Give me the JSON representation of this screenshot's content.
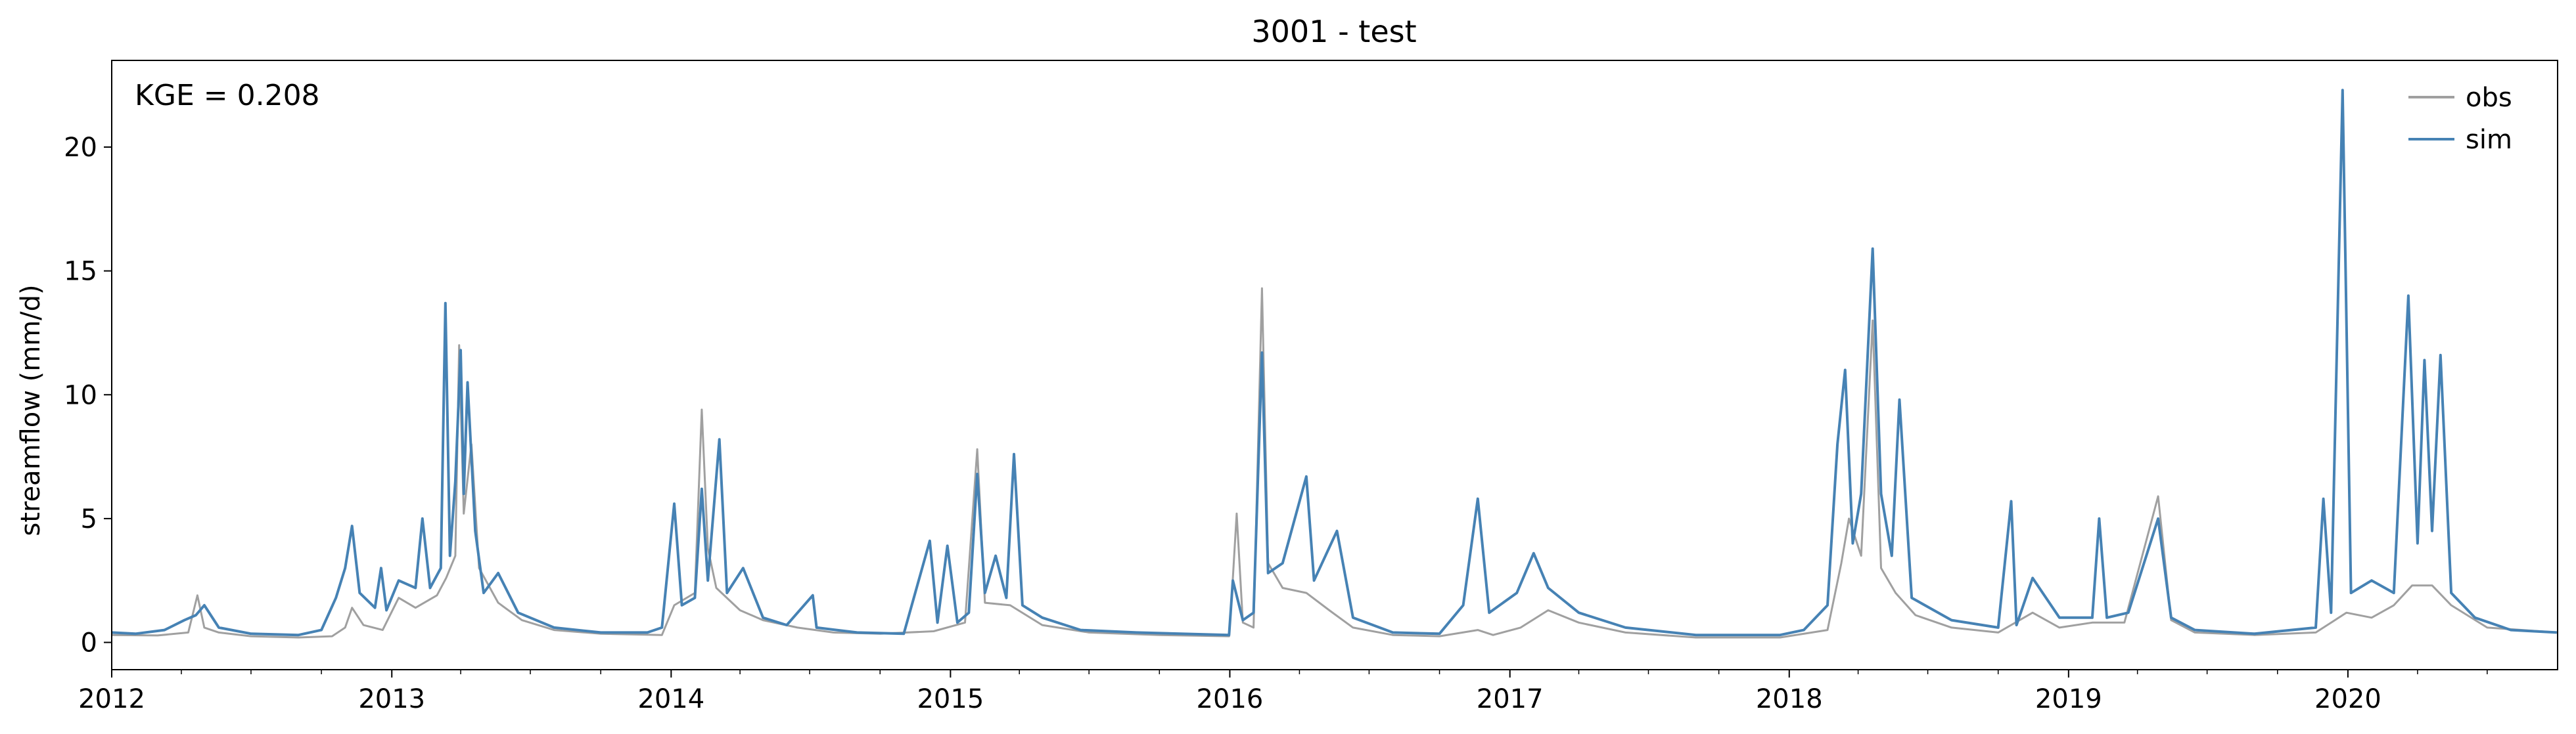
{
  "chart_data": {
    "type": "line",
    "title": "3001 - test",
    "xlabel": "",
    "ylabel": "streamflow (mm/d)",
    "annotation": "KGE = 0.208",
    "x_range": [
      "2012-01-01",
      "2020-10-01"
    ],
    "ylim": [
      -1.1,
      23.5
    ],
    "x_ticks": [
      "2012",
      "2013",
      "2014",
      "2015",
      "2016",
      "2017",
      "2018",
      "2019",
      "2020"
    ],
    "y_ticks": [
      "0",
      "5",
      "10",
      "15",
      "20"
    ],
    "grid": false,
    "legend_position": "top-right",
    "series": [
      {
        "name": "obs",
        "color": "#a0a0a0",
        "points": [
          [
            "2012-01-01",
            0.3
          ],
          [
            "2012-03-01",
            0.28
          ],
          [
            "2012-04-10",
            0.4
          ],
          [
            "2012-04-22",
            1.9
          ],
          [
            "2012-05-01",
            0.6
          ],
          [
            "2012-05-20",
            0.4
          ],
          [
            "2012-07-01",
            0.25
          ],
          [
            "2012-09-01",
            0.2
          ],
          [
            "2012-10-15",
            0.25
          ],
          [
            "2012-11-01",
            0.6
          ],
          [
            "2012-11-10",
            1.4
          ],
          [
            "2012-11-25",
            0.7
          ],
          [
            "2012-12-20",
            0.5
          ],
          [
            "2013-01-10",
            1.8
          ],
          [
            "2013-02-01",
            1.4
          ],
          [
            "2013-03-01",
            1.9
          ],
          [
            "2013-03-13",
            2.6
          ],
          [
            "2013-03-25",
            3.5
          ],
          [
            "2013-03-30",
            12.0
          ],
          [
            "2013-04-05",
            5.2
          ],
          [
            "2013-04-15",
            8.0
          ],
          [
            "2013-04-25",
            3.0
          ],
          [
            "2013-05-20",
            1.6
          ],
          [
            "2013-06-20",
            0.9
          ],
          [
            "2013-08-01",
            0.5
          ],
          [
            "2013-10-01",
            0.35
          ],
          [
            "2013-12-20",
            0.3
          ],
          [
            "2014-01-05",
            1.5
          ],
          [
            "2014-02-01",
            2.0
          ],
          [
            "2014-02-10",
            9.4
          ],
          [
            "2014-02-18",
            3.8
          ],
          [
            "2014-03-01",
            2.2
          ],
          [
            "2014-04-01",
            1.3
          ],
          [
            "2014-05-01",
            0.9
          ],
          [
            "2014-06-15",
            0.6
          ],
          [
            "2014-08-01",
            0.4
          ],
          [
            "2014-10-01",
            0.35
          ],
          [
            "2014-12-10",
            0.45
          ],
          [
            "2015-01-20",
            0.8
          ],
          [
            "2015-02-05",
            7.8
          ],
          [
            "2015-02-15",
            1.6
          ],
          [
            "2015-03-20",
            1.5
          ],
          [
            "2015-05-01",
            0.7
          ],
          [
            "2015-07-01",
            0.4
          ],
          [
            "2015-10-01",
            0.3
          ],
          [
            "2015-12-31",
            0.25
          ],
          [
            "2016-01-05",
            2.6
          ],
          [
            "2016-01-10",
            5.2
          ],
          [
            "2016-01-18",
            0.8
          ],
          [
            "2016-02-01",
            0.6
          ],
          [
            "2016-02-12",
            14.3
          ],
          [
            "2016-02-20",
            3.2
          ],
          [
            "2016-03-10",
            2.2
          ],
          [
            "2016-04-10",
            2.0
          ],
          [
            "2016-05-10",
            1.3
          ],
          [
            "2016-06-10",
            0.6
          ],
          [
            "2016-08-01",
            0.3
          ],
          [
            "2016-10-01",
            0.25
          ],
          [
            "2016-11-20",
            0.5
          ],
          [
            "2016-12-10",
            0.3
          ],
          [
            "2017-01-15",
            0.6
          ],
          [
            "2017-02-20",
            1.3
          ],
          [
            "2017-04-01",
            0.8
          ],
          [
            "2017-06-01",
            0.4
          ],
          [
            "2017-09-01",
            0.2
          ],
          [
            "2017-12-20",
            0.2
          ],
          [
            "2018-02-20",
            0.5
          ],
          [
            "2018-03-10",
            3.2
          ],
          [
            "2018-03-20",
            5.0
          ],
          [
            "2018-04-05",
            3.5
          ],
          [
            "2018-04-20",
            13.0
          ],
          [
            "2018-05-01",
            3.0
          ],
          [
            "2018-05-20",
            2.0
          ],
          [
            "2018-06-15",
            1.1
          ],
          [
            "2018-08-01",
            0.6
          ],
          [
            "2018-10-01",
            0.4
          ],
          [
            "2018-11-15",
            1.2
          ],
          [
            "2018-12-20",
            0.6
          ],
          [
            "2019-02-01",
            0.8
          ],
          [
            "2019-03-15",
            0.8
          ],
          [
            "2019-04-28",
            5.9
          ],
          [
            "2019-05-15",
            0.9
          ],
          [
            "2019-06-15",
            0.4
          ],
          [
            "2019-09-01",
            0.3
          ],
          [
            "2019-11-20",
            0.4
          ],
          [
            "2019-12-15",
            0.9
          ],
          [
            "2019-12-30",
            1.2
          ],
          [
            "2020-02-01",
            1.0
          ],
          [
            "2020-03-01",
            1.5
          ],
          [
            "2020-03-25",
            2.3
          ],
          [
            "2020-04-20",
            2.3
          ],
          [
            "2020-05-15",
            1.5
          ],
          [
            "2020-07-01",
            0.6
          ],
          [
            "2020-09-30",
            0.4
          ]
        ]
      },
      {
        "name": "sim",
        "color": "#4682b4",
        "points": [
          [
            "2012-01-01",
            0.4
          ],
          [
            "2012-02-01",
            0.35
          ],
          [
            "2012-03-10",
            0.5
          ],
          [
            "2012-04-05",
            0.9
          ],
          [
            "2012-04-20",
            1.1
          ],
          [
            "2012-05-01",
            1.5
          ],
          [
            "2012-05-20",
            0.6
          ],
          [
            "2012-07-01",
            0.35
          ],
          [
            "2012-09-01",
            0.3
          ],
          [
            "2012-10-01",
            0.5
          ],
          [
            "2012-10-20",
            1.8
          ],
          [
            "2012-11-01",
            3.0
          ],
          [
            "2012-11-10",
            4.7
          ],
          [
            "2012-11-20",
            2.0
          ],
          [
            "2012-12-10",
            1.4
          ],
          [
            "2012-12-18",
            3.0
          ],
          [
            "2012-12-25",
            1.3
          ],
          [
            "2013-01-10",
            2.5
          ],
          [
            "2013-02-01",
            2.2
          ],
          [
            "2013-02-10",
            5.0
          ],
          [
            "2013-02-20",
            2.2
          ],
          [
            "2013-03-06",
            3.0
          ],
          [
            "2013-03-12",
            13.7
          ],
          [
            "2013-03-18",
            3.5
          ],
          [
            "2013-03-25",
            6.5
          ],
          [
            "2013-04-01",
            11.8
          ],
          [
            "2013-04-05",
            6.0
          ],
          [
            "2013-04-10",
            10.5
          ],
          [
            "2013-04-20",
            4.5
          ],
          [
            "2013-05-01",
            2.0
          ],
          [
            "2013-05-20",
            2.8
          ],
          [
            "2013-06-15",
            1.2
          ],
          [
            "2013-08-01",
            0.6
          ],
          [
            "2013-10-01",
            0.4
          ],
          [
            "2013-12-01",
            0.4
          ],
          [
            "2013-12-20",
            0.6
          ],
          [
            "2014-01-05",
            5.6
          ],
          [
            "2014-01-15",
            1.5
          ],
          [
            "2014-02-01",
            1.8
          ],
          [
            "2014-02-10",
            6.2
          ],
          [
            "2014-02-18",
            2.5
          ],
          [
            "2014-03-05",
            8.2
          ],
          [
            "2014-03-15",
            2.0
          ],
          [
            "2014-04-05",
            3.0
          ],
          [
            "2014-05-01",
            1.0
          ],
          [
            "2014-06-01",
            0.7
          ],
          [
            "2014-07-05",
            1.9
          ],
          [
            "2014-07-10",
            0.6
          ],
          [
            "2014-09-01",
            0.4
          ],
          [
            "2014-11-01",
            0.35
          ],
          [
            "2014-12-05",
            4.1
          ],
          [
            "2014-12-15",
            0.8
          ],
          [
            "2014-12-28",
            3.9
          ],
          [
            "2015-01-10",
            0.8
          ],
          [
            "2015-01-25",
            1.2
          ],
          [
            "2015-02-05",
            6.8
          ],
          [
            "2015-02-15",
            2.0
          ],
          [
            "2015-03-01",
            3.5
          ],
          [
            "2015-03-15",
            1.8
          ],
          [
            "2015-03-25",
            7.6
          ],
          [
            "2015-04-05",
            1.5
          ],
          [
            "2015-05-01",
            1.0
          ],
          [
            "2015-06-20",
            0.5
          ],
          [
            "2015-09-01",
            0.4
          ],
          [
            "2015-12-31",
            0.3
          ],
          [
            "2016-01-05",
            2.5
          ],
          [
            "2016-01-18",
            0.9
          ],
          [
            "2016-02-01",
            1.2
          ],
          [
            "2016-02-12",
            11.7
          ],
          [
            "2016-02-20",
            2.8
          ],
          [
            "2016-03-10",
            3.2
          ],
          [
            "2016-04-10",
            6.7
          ],
          [
            "2016-04-20",
            2.5
          ],
          [
            "2016-05-20",
            4.5
          ],
          [
            "2016-06-10",
            1.0
          ],
          [
            "2016-08-01",
            0.4
          ],
          [
            "2016-10-01",
            0.35
          ],
          [
            "2016-11-01",
            1.5
          ],
          [
            "2016-11-20",
            5.8
          ],
          [
            "2016-12-05",
            1.2
          ],
          [
            "2017-01-10",
            2.0
          ],
          [
            "2017-02-01",
            3.6
          ],
          [
            "2017-02-20",
            2.2
          ],
          [
            "2017-04-01",
            1.2
          ],
          [
            "2017-06-01",
            0.6
          ],
          [
            "2017-09-01",
            0.3
          ],
          [
            "2017-12-20",
            0.3
          ],
          [
            "2018-01-20",
            0.5
          ],
          [
            "2018-02-20",
            1.5
          ],
          [
            "2018-03-05",
            8.0
          ],
          [
            "2018-03-15",
            11.0
          ],
          [
            "2018-03-25",
            4.0
          ],
          [
            "2018-04-05",
            6.0
          ],
          [
            "2018-04-20",
            15.9
          ],
          [
            "2018-05-01",
            6.0
          ],
          [
            "2018-05-15",
            3.5
          ],
          [
            "2018-05-25",
            9.8
          ],
          [
            "2018-06-10",
            1.8
          ],
          [
            "2018-08-01",
            0.9
          ],
          [
            "2018-10-01",
            0.6
          ],
          [
            "2018-10-18",
            5.7
          ],
          [
            "2018-10-25",
            0.7
          ],
          [
            "2018-11-15",
            2.6
          ],
          [
            "2018-12-20",
            1.0
          ],
          [
            "2019-02-01",
            1.0
          ],
          [
            "2019-02-10",
            5.0
          ],
          [
            "2019-02-20",
            1.0
          ],
          [
            "2019-03-20",
            1.2
          ],
          [
            "2019-04-28",
            5.0
          ],
          [
            "2019-05-15",
            1.0
          ],
          [
            "2019-06-15",
            0.5
          ],
          [
            "2019-09-01",
            0.35
          ],
          [
            "2019-11-20",
            0.6
          ],
          [
            "2019-11-30",
            5.8
          ],
          [
            "2019-12-10",
            1.2
          ],
          [
            "2019-12-25",
            22.3
          ],
          [
            "2020-01-05",
            2.0
          ],
          [
            "2020-02-01",
            2.5
          ],
          [
            "2020-03-01",
            2.0
          ],
          [
            "2020-03-20",
            14.0
          ],
          [
            "2020-04-01",
            4.0
          ],
          [
            "2020-04-10",
            11.4
          ],
          [
            "2020-04-20",
            4.5
          ],
          [
            "2020-05-01",
            11.6
          ],
          [
            "2020-05-15",
            2.0
          ],
          [
            "2020-06-15",
            1.0
          ],
          [
            "2020-08-01",
            0.5
          ],
          [
            "2020-09-30",
            0.4
          ]
        ]
      }
    ]
  }
}
